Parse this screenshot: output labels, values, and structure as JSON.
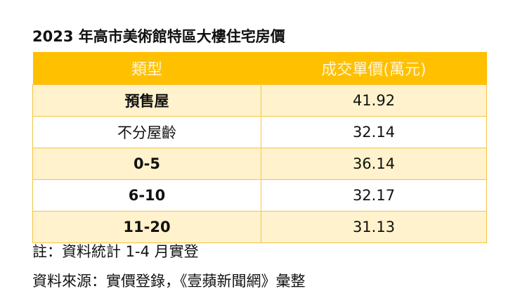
{
  "title": "2023 年高市美術館特區大樓住宅房價",
  "colors": {
    "header_bg": "#FFC000",
    "header_text": "#FFF6D9",
    "row_alt": "#FFF2CC",
    "border": "#F5C542"
  },
  "chart_data": {
    "type": "table",
    "title": "2023 年高市美術館特區大樓住宅房價",
    "columns": [
      "類型",
      "成交單價(萬元)"
    ],
    "rows": [
      [
        "預售屋",
        "41.92"
      ],
      [
        "不分屋齡",
        "32.14"
      ],
      [
        "0-5",
        "36.14"
      ],
      [
        "6-10",
        "32.17"
      ],
      [
        "11-20",
        "31.13"
      ]
    ]
  },
  "notes": {
    "note": "註：資料統計 1-4 月實登",
    "source": "資料來源：實價登錄，《壹蘋新聞網》彙整"
  }
}
